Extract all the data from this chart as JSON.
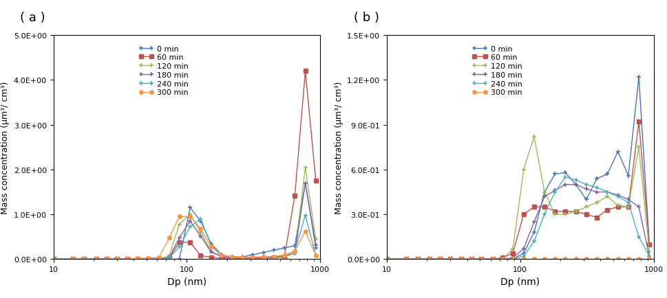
{
  "panel_a": {
    "title": "( a )",
    "xlabel": "Dp (nm)",
    "ylabel": "Mass concentration (μm³/ cm³)",
    "ylim": [
      0,
      5.0
    ],
    "yticks": [
      0.0,
      1.0,
      2.0,
      3.0,
      4.0,
      5.0
    ],
    "ytick_labels": [
      "0.0E+00",
      "1.0E+00",
      "2.0E+00",
      "3.0E+00",
      "4.0E+00",
      "5.0E+00"
    ],
    "xlim": [
      10,
      1000
    ],
    "series": [
      {
        "label": "0 min",
        "color": "#4472C4",
        "marker": "+",
        "x": [
          10,
          14,
          17,
          21,
          25,
          30,
          36,
          43,
          51,
          62,
          74,
          88,
          106,
          127,
          152,
          182,
          218,
          261,
          313,
          375,
          450,
          539,
          646,
          774,
          928
        ],
        "y": [
          0,
          0,
          0,
          0,
          0,
          0,
          0,
          0,
          0,
          0,
          0,
          0,
          1.15,
          0.85,
          0.35,
          0.1,
          0.05,
          0.05,
          0.1,
          0.15,
          0.2,
          0.25,
          0.3,
          1.7,
          0.25
        ]
      },
      {
        "label": "60 min",
        "color": "#C0504D",
        "marker": "s",
        "x": [
          10,
          14,
          17,
          21,
          25,
          30,
          36,
          43,
          51,
          62,
          74,
          88,
          106,
          127,
          152,
          182,
          218,
          261,
          313,
          375,
          450,
          539,
          646,
          774,
          928
        ],
        "y": [
          0,
          0,
          0,
          0,
          0,
          0,
          0,
          0,
          0,
          0,
          0.03,
          0.38,
          0.38,
          0.08,
          0.04,
          0.02,
          0.02,
          0.02,
          0.02,
          0.02,
          0.03,
          0.04,
          1.42,
          4.2,
          1.75
        ]
      },
      {
        "label": "120 min",
        "color": "#9BBB59",
        "marker": "+",
        "x": [
          10,
          14,
          17,
          21,
          25,
          30,
          36,
          43,
          51,
          62,
          74,
          88,
          106,
          127,
          152,
          182,
          218,
          261,
          313,
          375,
          450,
          539,
          646,
          774,
          928
        ],
        "y": [
          0,
          0,
          0,
          0,
          0,
          0,
          0,
          0,
          0,
          0,
          0.08,
          0.78,
          1.0,
          0.6,
          0.18,
          0.06,
          0.03,
          0.03,
          0.03,
          0.04,
          0.05,
          0.06,
          0.13,
          2.05,
          0.45
        ]
      },
      {
        "label": "180 min",
        "color": "#8064A2",
        "marker": "+",
        "x": [
          10,
          14,
          17,
          21,
          25,
          30,
          36,
          43,
          51,
          62,
          74,
          88,
          106,
          127,
          152,
          182,
          218,
          261,
          313,
          375,
          450,
          539,
          646,
          774,
          928
        ],
        "y": [
          0,
          0,
          0,
          0,
          0,
          0,
          0,
          0,
          0,
          0,
          0.04,
          0.48,
          0.85,
          0.52,
          0.16,
          0.06,
          0.03,
          0.03,
          0.03,
          0.04,
          0.05,
          0.07,
          0.13,
          1.7,
          0.32
        ]
      },
      {
        "label": "240 min",
        "color": "#4BACC6",
        "marker": "+",
        "x": [
          10,
          14,
          17,
          21,
          25,
          30,
          36,
          43,
          51,
          62,
          74,
          88,
          106,
          127,
          152,
          182,
          218,
          261,
          313,
          375,
          450,
          539,
          646,
          774,
          928
        ],
        "y": [
          0,
          0,
          0,
          0,
          0,
          0,
          0,
          0,
          0,
          0,
          0.02,
          0.28,
          0.72,
          0.9,
          0.32,
          0.09,
          0.04,
          0.03,
          0.04,
          0.05,
          0.06,
          0.09,
          0.18,
          0.98,
          0.08
        ]
      },
      {
        "label": "300 min",
        "color": "#F79646",
        "marker": "o",
        "x": [
          10,
          14,
          17,
          21,
          25,
          30,
          36,
          43,
          51,
          62,
          74,
          88,
          106,
          127,
          152,
          182,
          218,
          261,
          313,
          375,
          450,
          539,
          646,
          774,
          928
        ],
        "y": [
          0,
          0,
          0,
          0,
          0,
          0,
          0,
          0.02,
          0.02,
          0.04,
          0.48,
          0.95,
          0.95,
          0.68,
          0.28,
          0.09,
          0.05,
          0.04,
          0.04,
          0.05,
          0.06,
          0.09,
          0.18,
          0.62,
          0.08
        ]
      }
    ]
  },
  "panel_b": {
    "title": "( b )",
    "xlabel": "Dp (nm)",
    "ylabel": "Mass concentration (μm³/ cm³)",
    "ylim": [
      0,
      1.5
    ],
    "yticks": [
      0.0,
      0.3,
      0.6,
      0.9,
      1.2,
      1.5
    ],
    "ytick_labels": [
      "0.0E+00",
      "3.0E-01",
      "6.0E-01",
      "9.0E-01",
      "1.2E+00",
      "1.5E+00"
    ],
    "xlim": [
      10,
      1000
    ],
    "series": [
      {
        "label": "0 min",
        "color": "#4472C4",
        "marker": "+",
        "x": [
          10,
          14,
          17,
          21,
          25,
          30,
          36,
          43,
          51,
          62,
          74,
          88,
          106,
          127,
          152,
          182,
          218,
          261,
          313,
          375,
          450,
          539,
          646,
          774,
          928
        ],
        "y": [
          0,
          0,
          0,
          0,
          0,
          0,
          0,
          0,
          0,
          0,
          0,
          0,
          0.04,
          0.18,
          0.45,
          0.57,
          0.58,
          0.5,
          0.4,
          0.54,
          0.57,
          0.72,
          0.56,
          1.22,
          0.1
        ]
      },
      {
        "label": "60 min",
        "color": "#C0504D",
        "marker": "s",
        "x": [
          10,
          14,
          17,
          21,
          25,
          30,
          36,
          43,
          51,
          62,
          74,
          88,
          106,
          127,
          152,
          182,
          218,
          261,
          313,
          375,
          450,
          539,
          646,
          774,
          928
        ],
        "y": [
          0,
          0,
          0,
          0,
          0,
          0,
          0,
          0,
          0,
          0,
          0.01,
          0.04,
          0.3,
          0.35,
          0.35,
          0.32,
          0.32,
          0.32,
          0.3,
          0.28,
          0.33,
          0.35,
          0.35,
          0.92,
          0.1
        ]
      },
      {
        "label": "120 min",
        "color": "#9BBB59",
        "marker": "+",
        "x": [
          10,
          14,
          17,
          21,
          25,
          30,
          36,
          43,
          51,
          62,
          74,
          88,
          106,
          127,
          152,
          182,
          218,
          261,
          313,
          375,
          450,
          539,
          646,
          774,
          928
        ],
        "y": [
          0,
          0,
          0,
          0,
          0,
          0,
          0,
          0,
          0,
          0,
          0,
          0.07,
          0.6,
          0.82,
          0.45,
          0.3,
          0.3,
          0.32,
          0.35,
          0.38,
          0.42,
          0.36,
          0.35,
          0.75,
          0.05
        ]
      },
      {
        "label": "180 min",
        "color": "#8064A2",
        "marker": "+",
        "x": [
          10,
          14,
          17,
          21,
          25,
          30,
          36,
          43,
          51,
          62,
          74,
          88,
          106,
          127,
          152,
          182,
          218,
          261,
          313,
          375,
          450,
          539,
          646,
          774,
          928
        ],
        "y": [
          0,
          0,
          0,
          0,
          0,
          0,
          0,
          0,
          0,
          0,
          0,
          0.01,
          0.07,
          0.25,
          0.42,
          0.46,
          0.5,
          0.5,
          0.47,
          0.45,
          0.45,
          0.43,
          0.4,
          0.35,
          0.02
        ]
      },
      {
        "label": "240 min",
        "color": "#4BACC6",
        "marker": "+",
        "x": [
          10,
          14,
          17,
          21,
          25,
          30,
          36,
          43,
          51,
          62,
          74,
          88,
          106,
          127,
          152,
          182,
          218,
          261,
          313,
          375,
          450,
          539,
          646,
          774,
          928
        ],
        "y": [
          0,
          0,
          0,
          0,
          0,
          0,
          0,
          0,
          0,
          0,
          0,
          0,
          0.02,
          0.12,
          0.3,
          0.45,
          0.55,
          0.53,
          0.5,
          0.48,
          0.45,
          0.42,
          0.38,
          0.15,
          0.02
        ]
      },
      {
        "label": "300 min",
        "color": "#F79646",
        "marker": "o",
        "x": [
          10,
          14,
          17,
          21,
          25,
          30,
          36,
          43,
          51,
          62,
          74,
          88,
          106,
          127,
          152,
          182,
          218,
          261,
          313,
          375,
          450,
          539,
          646,
          774,
          928
        ],
        "y": [
          0,
          0,
          0,
          0,
          0,
          0,
          0,
          0,
          0,
          0,
          0,
          0,
          0,
          0,
          0,
          0,
          0,
          0,
          0,
          0,
          0,
          0,
          0,
          0,
          0
        ]
      }
    ]
  }
}
